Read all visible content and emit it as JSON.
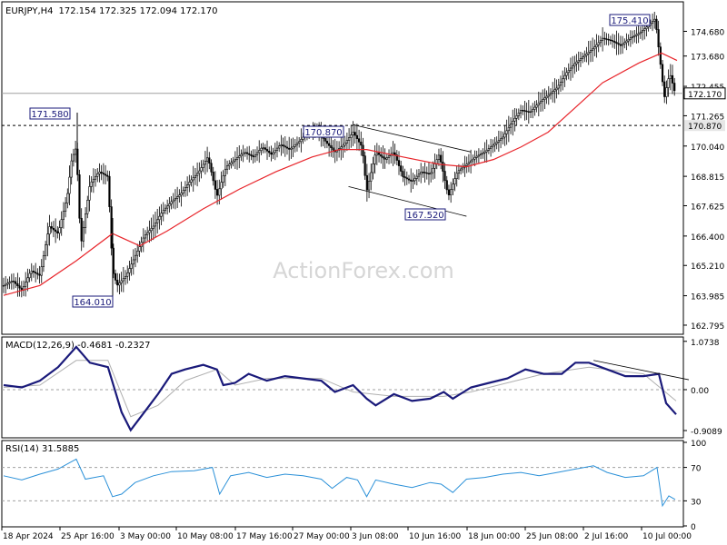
{
  "header": {
    "symbol": "EURJPY,H4",
    "ohlc": "172.154 172.325 172.094 172.170"
  },
  "watermark": "ActionForex.com",
  "chart_data": [
    {
      "type": "candlestick",
      "title": "EURJPY,H4 172.154 172.325 172.094 172.170",
      "ylim": [
        162.5,
        175.8
      ],
      "y_ticks": [
        "174.680",
        "173.680",
        "172.455",
        "171.265",
        "170.040",
        "168.815",
        "167.625",
        "166.400",
        "165.210",
        "163.985",
        "162.795"
      ],
      "x_ticks": [
        "18 Apr 2024",
        "25 Apr 16:00",
        "3 May 00:00",
        "10 May 08:00",
        "17 May 16:00",
        "27 May 00:00",
        "3 Jun 08:00",
        "10 Jun 16:00",
        "18 Jun 00:00",
        "25 Jun 08:00",
        "2 Jul 16:00",
        "10 Jul 00:00"
      ],
      "price_labels": [
        {
          "text": "172.170",
          "value": 172.17,
          "style": "current"
        },
        {
          "text": "170.870",
          "value": 170.87,
          "style": "level"
        }
      ],
      "horizontal_levels": [
        172.17,
        170.87
      ],
      "annotations": [
        {
          "text": "171.580",
          "value": 171.58
        },
        {
          "text": "164.010",
          "value": 164.01
        },
        {
          "text": "170.870",
          "value": 170.87
        },
        {
          "text": "167.520",
          "value": 167.52
        },
        {
          "text": "175.410",
          "value": 175.41
        }
      ],
      "price_path": [
        {
          "t": 0,
          "v": 164.4
        },
        {
          "t": 10,
          "v": 164.6
        },
        {
          "t": 20,
          "v": 164.2
        },
        {
          "t": 30,
          "v": 165.0
        },
        {
          "t": 40,
          "v": 164.8
        },
        {
          "t": 50,
          "v": 166.8
        },
        {
          "t": 60,
          "v": 166.5
        },
        {
          "t": 70,
          "v": 168.0
        },
        {
          "t": 75,
          "v": 169.5
        },
        {
          "t": 80,
          "v": 170.0
        },
        {
          "t": 85,
          "v": 166.0
        },
        {
          "t": 95,
          "v": 168.5
        },
        {
          "t": 105,
          "v": 169.0
        },
        {
          "t": 115,
          "v": 168.8
        },
        {
          "t": 120,
          "v": 165.0
        },
        {
          "t": 125,
          "v": 164.4
        },
        {
          "t": 135,
          "v": 164.8
        },
        {
          "t": 145,
          "v": 165.6
        },
        {
          "t": 155,
          "v": 166.4
        },
        {
          "t": 165,
          "v": 166.8
        },
        {
          "t": 175,
          "v": 167.4
        },
        {
          "t": 185,
          "v": 167.8
        },
        {
          "t": 195,
          "v": 168.1
        },
        {
          "t": 205,
          "v": 168.6
        },
        {
          "t": 215,
          "v": 169.0
        },
        {
          "t": 225,
          "v": 169.6
        },
        {
          "t": 235,
          "v": 168.0
        },
        {
          "t": 245,
          "v": 169.2
        },
        {
          "t": 255,
          "v": 169.5
        },
        {
          "t": 265,
          "v": 169.8
        },
        {
          "t": 275,
          "v": 169.6
        },
        {
          "t": 285,
          "v": 170.0
        },
        {
          "t": 295,
          "v": 169.7
        },
        {
          "t": 305,
          "v": 170.1
        },
        {
          "t": 315,
          "v": 169.9
        },
        {
          "t": 325,
          "v": 170.2
        },
        {
          "t": 335,
          "v": 170.6
        },
        {
          "t": 345,
          "v": 170.7
        },
        {
          "t": 355,
          "v": 170.2
        },
        {
          "t": 365,
          "v": 169.8
        },
        {
          "t": 375,
          "v": 170.1
        },
        {
          "t": 385,
          "v": 170.6
        },
        {
          "t": 395,
          "v": 170.0
        },
        {
          "t": 400,
          "v": 168.2
        },
        {
          "t": 410,
          "v": 169.8
        },
        {
          "t": 420,
          "v": 169.5
        },
        {
          "t": 430,
          "v": 169.8
        },
        {
          "t": 440,
          "v": 168.8
        },
        {
          "t": 450,
          "v": 168.6
        },
        {
          "t": 460,
          "v": 169.0
        },
        {
          "t": 470,
          "v": 168.9
        },
        {
          "t": 480,
          "v": 169.7
        },
        {
          "t": 490,
          "v": 168.0
        },
        {
          "t": 500,
          "v": 169.0
        },
        {
          "t": 510,
          "v": 169.3
        },
        {
          "t": 520,
          "v": 169.6
        },
        {
          "t": 530,
          "v": 169.8
        },
        {
          "t": 540,
          "v": 170.1
        },
        {
          "t": 550,
          "v": 170.4
        },
        {
          "t": 560,
          "v": 171.0
        },
        {
          "t": 570,
          "v": 171.5
        },
        {
          "t": 580,
          "v": 171.4
        },
        {
          "t": 590,
          "v": 171.8
        },
        {
          "t": 600,
          "v": 172.1
        },
        {
          "t": 610,
          "v": 172.4
        },
        {
          "t": 620,
          "v": 173.0
        },
        {
          "t": 630,
          "v": 173.4
        },
        {
          "t": 640,
          "v": 173.7
        },
        {
          "t": 650,
          "v": 174.0
        },
        {
          "t": 660,
          "v": 174.4
        },
        {
          "t": 670,
          "v": 174.3
        },
        {
          "t": 680,
          "v": 174.1
        },
        {
          "t": 690,
          "v": 174.4
        },
        {
          "t": 700,
          "v": 174.6
        },
        {
          "t": 710,
          "v": 174.9
        },
        {
          "t": 718,
          "v": 175.2
        },
        {
          "t": 723,
          "v": 173.6
        },
        {
          "t": 728,
          "v": 172.0
        },
        {
          "t": 734,
          "v": 173.0
        },
        {
          "t": 740,
          "v": 172.17
        }
      ],
      "moving_average": [
        {
          "t": 0,
          "v": 164.0
        },
        {
          "t": 40,
          "v": 164.4
        },
        {
          "t": 80,
          "v": 165.4
        },
        {
          "t": 120,
          "v": 166.5
        },
        {
          "t": 150,
          "v": 166.0
        },
        {
          "t": 180,
          "v": 166.6
        },
        {
          "t": 220,
          "v": 167.5
        },
        {
          "t": 260,
          "v": 168.3
        },
        {
          "t": 300,
          "v": 169.0
        },
        {
          "t": 340,
          "v": 169.6
        },
        {
          "t": 370,
          "v": 169.9
        },
        {
          "t": 400,
          "v": 169.9
        },
        {
          "t": 440,
          "v": 169.6
        },
        {
          "t": 480,
          "v": 169.3
        },
        {
          "t": 510,
          "v": 169.2
        },
        {
          "t": 540,
          "v": 169.5
        },
        {
          "t": 570,
          "v": 170.0
        },
        {
          "t": 600,
          "v": 170.6
        },
        {
          "t": 630,
          "v": 171.6
        },
        {
          "t": 660,
          "v": 172.6
        },
        {
          "t": 700,
          "v": 173.4
        },
        {
          "t": 725,
          "v": 173.8
        },
        {
          "t": 742,
          "v": 173.5
        }
      ],
      "trendlines": [
        {
          "from": {
            "t": 385,
            "v": 170.9
          },
          "to": {
            "t": 515,
            "v": 169.8
          }
        },
        {
          "from": {
            "t": 380,
            "v": 168.4
          },
          "to": {
            "t": 510,
            "v": 167.2
          }
        }
      ]
    },
    {
      "type": "line",
      "title": "MACD(12,26,9) -0.4681 -0.2327",
      "ylim": [
        -1.05,
        1.15
      ],
      "y_ticks": [
        "1.0738",
        "0.00",
        "-0.9089"
      ],
      "series": [
        {
          "values": [
            {
              "t": 0,
              "v": 0.1
            },
            {
              "t": 20,
              "v": 0.05
            },
            {
              "t": 40,
              "v": 0.2
            },
            {
              "t": 60,
              "v": 0.5
            },
            {
              "t": 80,
              "v": 0.95
            },
            {
              "t": 95,
              "v": 0.6
            },
            {
              "t": 115,
              "v": 0.5
            },
            {
              "t": 130,
              "v": -0.5
            },
            {
              "t": 140,
              "v": -0.9
            },
            {
              "t": 155,
              "v": -0.5
            },
            {
              "t": 170,
              "v": -0.1
            },
            {
              "t": 185,
              "v": 0.35
            },
            {
              "t": 200,
              "v": 0.45
            },
            {
              "t": 220,
              "v": 0.55
            },
            {
              "t": 235,
              "v": 0.45
            },
            {
              "t": 242,
              "v": 0.1
            },
            {
              "t": 255,
              "v": 0.15
            },
            {
              "t": 270,
              "v": 0.35
            },
            {
              "t": 290,
              "v": 0.2
            },
            {
              "t": 310,
              "v": 0.3
            },
            {
              "t": 330,
              "v": 0.25
            },
            {
              "t": 350,
              "v": 0.2
            },
            {
              "t": 365,
              "v": -0.05
            },
            {
              "t": 385,
              "v": 0.1
            },
            {
              "t": 400,
              "v": -0.2
            },
            {
              "t": 410,
              "v": -0.35
            },
            {
              "t": 430,
              "v": -0.1
            },
            {
              "t": 450,
              "v": -0.25
            },
            {
              "t": 470,
              "v": -0.2
            },
            {
              "t": 485,
              "v": -0.05
            },
            {
              "t": 495,
              "v": -0.2
            },
            {
              "t": 515,
              "v": 0.05
            },
            {
              "t": 535,
              "v": 0.15
            },
            {
              "t": 555,
              "v": 0.25
            },
            {
              "t": 575,
              "v": 0.45
            },
            {
              "t": 595,
              "v": 0.35
            },
            {
              "t": 615,
              "v": 0.35
            },
            {
              "t": 630,
              "v": 0.6
            },
            {
              "t": 645,
              "v": 0.6
            },
            {
              "t": 665,
              "v": 0.45
            },
            {
              "t": 685,
              "v": 0.3
            },
            {
              "t": 705,
              "v": 0.3
            },
            {
              "t": 722,
              "v": 0.35
            },
            {
              "t": 730,
              "v": -0.3
            },
            {
              "t": 741,
              "v": -0.55
            }
          ]
        },
        {
          "values": [
            {
              "t": 0,
              "v": 0.05
            },
            {
              "t": 40,
              "v": 0.1
            },
            {
              "t": 80,
              "v": 0.65
            },
            {
              "t": 115,
              "v": 0.65
            },
            {
              "t": 140,
              "v": -0.6
            },
            {
              "t": 170,
              "v": -0.35
            },
            {
              "t": 200,
              "v": 0.2
            },
            {
              "t": 235,
              "v": 0.45
            },
            {
              "t": 255,
              "v": 0.1
            },
            {
              "t": 290,
              "v": 0.25
            },
            {
              "t": 350,
              "v": 0.25
            },
            {
              "t": 385,
              "v": -0.05
            },
            {
              "t": 430,
              "v": -0.15
            },
            {
              "t": 485,
              "v": -0.15
            },
            {
              "t": 515,
              "v": -0.05
            },
            {
              "t": 555,
              "v": 0.15
            },
            {
              "t": 595,
              "v": 0.35
            },
            {
              "t": 645,
              "v": 0.5
            },
            {
              "t": 705,
              "v": 0.35
            },
            {
              "t": 741,
              "v": -0.25
            }
          ]
        }
      ],
      "trendlines": [
        {
          "from": {
            "t": 650,
            "v": 0.65
          },
          "to": {
            "t": 755,
            "v": 0.22
          }
        }
      ]
    },
    {
      "type": "line",
      "title": "RSI(14) 31.5885",
      "ylim": [
        0,
        100
      ],
      "y_ticks": [
        "100",
        "70",
        "30",
        "0"
      ],
      "levels": [
        70,
        30
      ],
      "series": [
        {
          "values": [
            {
              "t": 0,
              "v": 60
            },
            {
              "t": 20,
              "v": 55
            },
            {
              "t": 40,
              "v": 62
            },
            {
              "t": 60,
              "v": 68
            },
            {
              "t": 80,
              "v": 80
            },
            {
              "t": 90,
              "v": 56
            },
            {
              "t": 110,
              "v": 60
            },
            {
              "t": 120,
              "v": 35
            },
            {
              "t": 130,
              "v": 38
            },
            {
              "t": 145,
              "v": 52
            },
            {
              "t": 165,
              "v": 60
            },
            {
              "t": 185,
              "v": 65
            },
            {
              "t": 210,
              "v": 66
            },
            {
              "t": 230,
              "v": 70
            },
            {
              "t": 238,
              "v": 38
            },
            {
              "t": 250,
              "v": 60
            },
            {
              "t": 270,
              "v": 64
            },
            {
              "t": 290,
              "v": 58
            },
            {
              "t": 310,
              "v": 62
            },
            {
              "t": 330,
              "v": 60
            },
            {
              "t": 350,
              "v": 56
            },
            {
              "t": 362,
              "v": 45
            },
            {
              "t": 378,
              "v": 58
            },
            {
              "t": 390,
              "v": 55
            },
            {
              "t": 400,
              "v": 35
            },
            {
              "t": 410,
              "v": 55
            },
            {
              "t": 430,
              "v": 50
            },
            {
              "t": 450,
              "v": 46
            },
            {
              "t": 470,
              "v": 52
            },
            {
              "t": 482,
              "v": 50
            },
            {
              "t": 495,
              "v": 40
            },
            {
              "t": 510,
              "v": 56
            },
            {
              "t": 530,
              "v": 58
            },
            {
              "t": 550,
              "v": 62
            },
            {
              "t": 570,
              "v": 64
            },
            {
              "t": 590,
              "v": 60
            },
            {
              "t": 610,
              "v": 64
            },
            {
              "t": 630,
              "v": 68
            },
            {
              "t": 650,
              "v": 72
            },
            {
              "t": 665,
              "v": 64
            },
            {
              "t": 685,
              "v": 58
            },
            {
              "t": 705,
              "v": 60
            },
            {
              "t": 720,
              "v": 70
            },
            {
              "t": 726,
              "v": 24
            },
            {
              "t": 733,
              "v": 36
            },
            {
              "t": 740,
              "v": 31.6
            }
          ]
        }
      ]
    }
  ],
  "colors": {
    "background": "#ffffff",
    "frame": "#000000",
    "candles": "#000000",
    "moving_average": "#e8252b",
    "macd_line": "#1a1a7a",
    "signal_line": "#b0b0b0",
    "rsi_line": "#2a90d8",
    "watermark": "#d6d6d6"
  }
}
